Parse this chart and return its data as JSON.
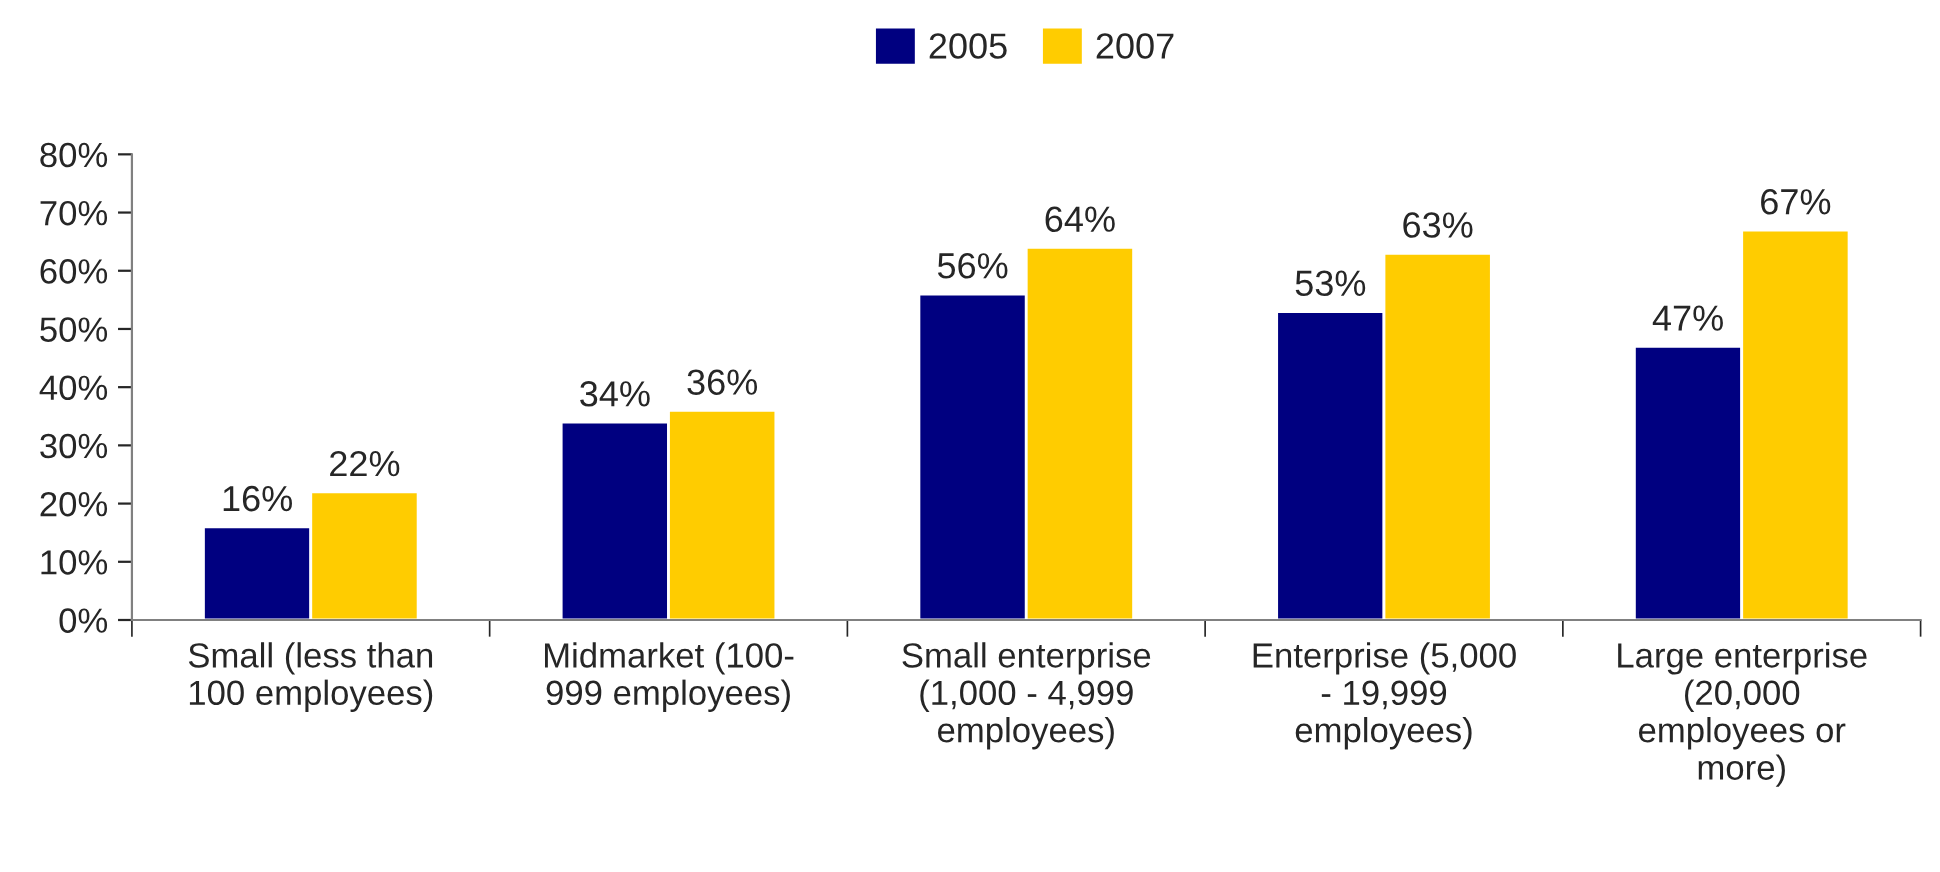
{
  "chart_data": {
    "type": "bar",
    "categories": [
      "Small (less than\n100 employees)",
      "Midmarket (100-\n999 employees)",
      "Small enterprise\n(1,000 - 4,999\nemployees)",
      "Enterprise (5,000\n- 19,999\nemployees)",
      "Large enterprise\n(20,000\nemployees or\nmore)"
    ],
    "series": [
      {
        "name": "2005",
        "color": "#000080",
        "values": [
          16,
          34,
          56,
          53,
          47
        ],
        "value_labels": [
          "16%",
          "34%",
          "56%",
          "53%",
          "47%"
        ]
      },
      {
        "name": "2007",
        "color": "#ffcc00",
        "values": [
          22,
          36,
          64,
          63,
          67
        ],
        "value_labels": [
          "22%",
          "36%",
          "64%",
          "63%",
          "67%"
        ]
      }
    ],
    "ylim": [
      0,
      80
    ],
    "yticks": [
      {
        "value": 0,
        "label": "0%"
      },
      {
        "value": 10,
        "label": "10%"
      },
      {
        "value": 20,
        "label": "20%"
      },
      {
        "value": 30,
        "label": "30%"
      },
      {
        "value": 40,
        "label": "40%"
      },
      {
        "value": 50,
        "label": "50%"
      },
      {
        "value": 60,
        "label": "60%"
      },
      {
        "value": 70,
        "label": "70%"
      },
      {
        "value": 80,
        "label": "80%"
      }
    ],
    "grid": false,
    "legend": "top"
  }
}
